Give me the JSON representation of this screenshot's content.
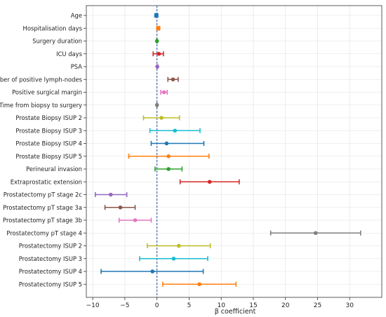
{
  "chart_data": {
    "type": "forest",
    "xlabel": "β coefficient",
    "xlim": [
      -11,
      35
    ],
    "xticks": [
      -10,
      -5,
      0,
      5,
      10,
      15,
      20,
      25,
      30
    ],
    "xtick_labels": [
      "−10",
      "−5",
      "0",
      "5",
      "10",
      "15",
      "20",
      "25",
      "30"
    ],
    "reference_line": 0,
    "grid": true,
    "rows": [
      {
        "label": "Age",
        "estimate": -0.1,
        "ci": [
          -0.2,
          0.0
        ],
        "color": "#1f77b4",
        "marker": "square"
      },
      {
        "label": "Hospitalisation days",
        "estimate": 0.2,
        "ci": [
          0.05,
          0.35
        ],
        "color": "#ff7f0e",
        "marker": "square"
      },
      {
        "label": "Surgery duration",
        "estimate": 0.0,
        "ci": [
          -0.05,
          0.05
        ],
        "color": "#2ca02c",
        "marker": "circle"
      },
      {
        "label": "ICU days",
        "estimate": 0.3,
        "ci": [
          -0.6,
          1.0
        ],
        "color": "#d62728",
        "marker": "circle"
      },
      {
        "label": "PSA",
        "estimate": 0.05,
        "ci": [
          0.0,
          0.1
        ],
        "color": "#9467bd",
        "marker": "circle"
      },
      {
        "label": "Number of positive lymph-nodes",
        "estimate": 2.5,
        "ci": [
          1.7,
          3.3
        ],
        "color": "#8c564b",
        "marker": "circle"
      },
      {
        "label": "Positive surgical margin",
        "estimate": 1.1,
        "ci": [
          0.6,
          1.6
        ],
        "color": "#e377c2",
        "marker": "circle"
      },
      {
        "label": "Time from biopsy to surgery",
        "estimate": 0.0,
        "ci": [
          -0.05,
          0.05
        ],
        "color": "#7f7f7f",
        "marker": "circle"
      },
      {
        "label": "Prostate Biopsy ISUP 2",
        "estimate": 0.7,
        "ci": [
          -2.1,
          3.5
        ],
        "color": "#bcbd22",
        "marker": "circle"
      },
      {
        "label": "Prostate Biopsy ISUP 3",
        "estimate": 2.8,
        "ci": [
          -1.1,
          6.7
        ],
        "color": "#17becf",
        "marker": "circle"
      },
      {
        "label": "Prostate Biopsy ISUP 4",
        "estimate": 1.5,
        "ci": [
          -0.9,
          7.3
        ],
        "color": "#1f77b4",
        "marker": "circle"
      },
      {
        "label": "Prostate Biopsy ISUP 5",
        "estimate": 1.8,
        "ci": [
          -4.4,
          8.1
        ],
        "color": "#ff7f0e",
        "marker": "circle"
      },
      {
        "label": "Perineural invasion",
        "estimate": 1.8,
        "ci": [
          -0.3,
          3.9
        ],
        "color": "#2ca02c",
        "marker": "circle"
      },
      {
        "label": "Extraprostatic extension",
        "estimate": 8.2,
        "ci": [
          3.6,
          12.8
        ],
        "color": "#d62728",
        "marker": "circle"
      },
      {
        "label": "Prostatectomy pT stage 2c",
        "estimate": -7.2,
        "ci": [
          -9.6,
          -4.7
        ],
        "color": "#9467bd",
        "marker": "circle"
      },
      {
        "label": "Prostatectomy pT stage 3a",
        "estimate": -5.7,
        "ci": [
          -8.1,
          -3.4
        ],
        "color": "#8c564b",
        "marker": "circle"
      },
      {
        "label": "Prostatectomy pT stage 3b",
        "estimate": -3.4,
        "ci": [
          -5.9,
          -0.9
        ],
        "color": "#e377c2",
        "marker": "circle"
      },
      {
        "label": "Prostatectomy pT stage 4",
        "estimate": 24.7,
        "ci": [
          17.7,
          31.7
        ],
        "color": "#7f7f7f",
        "marker": "circle"
      },
      {
        "label": "Prostatectomy ISUP 2",
        "estimate": 3.4,
        "ci": [
          -1.5,
          8.3
        ],
        "color": "#bcbd22",
        "marker": "circle"
      },
      {
        "label": "Prostatectomy ISUP 3",
        "estimate": 2.6,
        "ci": [
          -2.7,
          7.9
        ],
        "color": "#17becf",
        "marker": "circle"
      },
      {
        "label": "Prostatectomy ISUP 4",
        "estimate": -0.7,
        "ci": [
          -8.7,
          7.2
        ],
        "color": "#1f77b4",
        "marker": "circle"
      },
      {
        "label": "Prostatectomy ISUP 5",
        "estimate": 6.6,
        "ci": [
          0.9,
          12.3
        ],
        "color": "#ff7f0e",
        "marker": "circle"
      }
    ]
  }
}
